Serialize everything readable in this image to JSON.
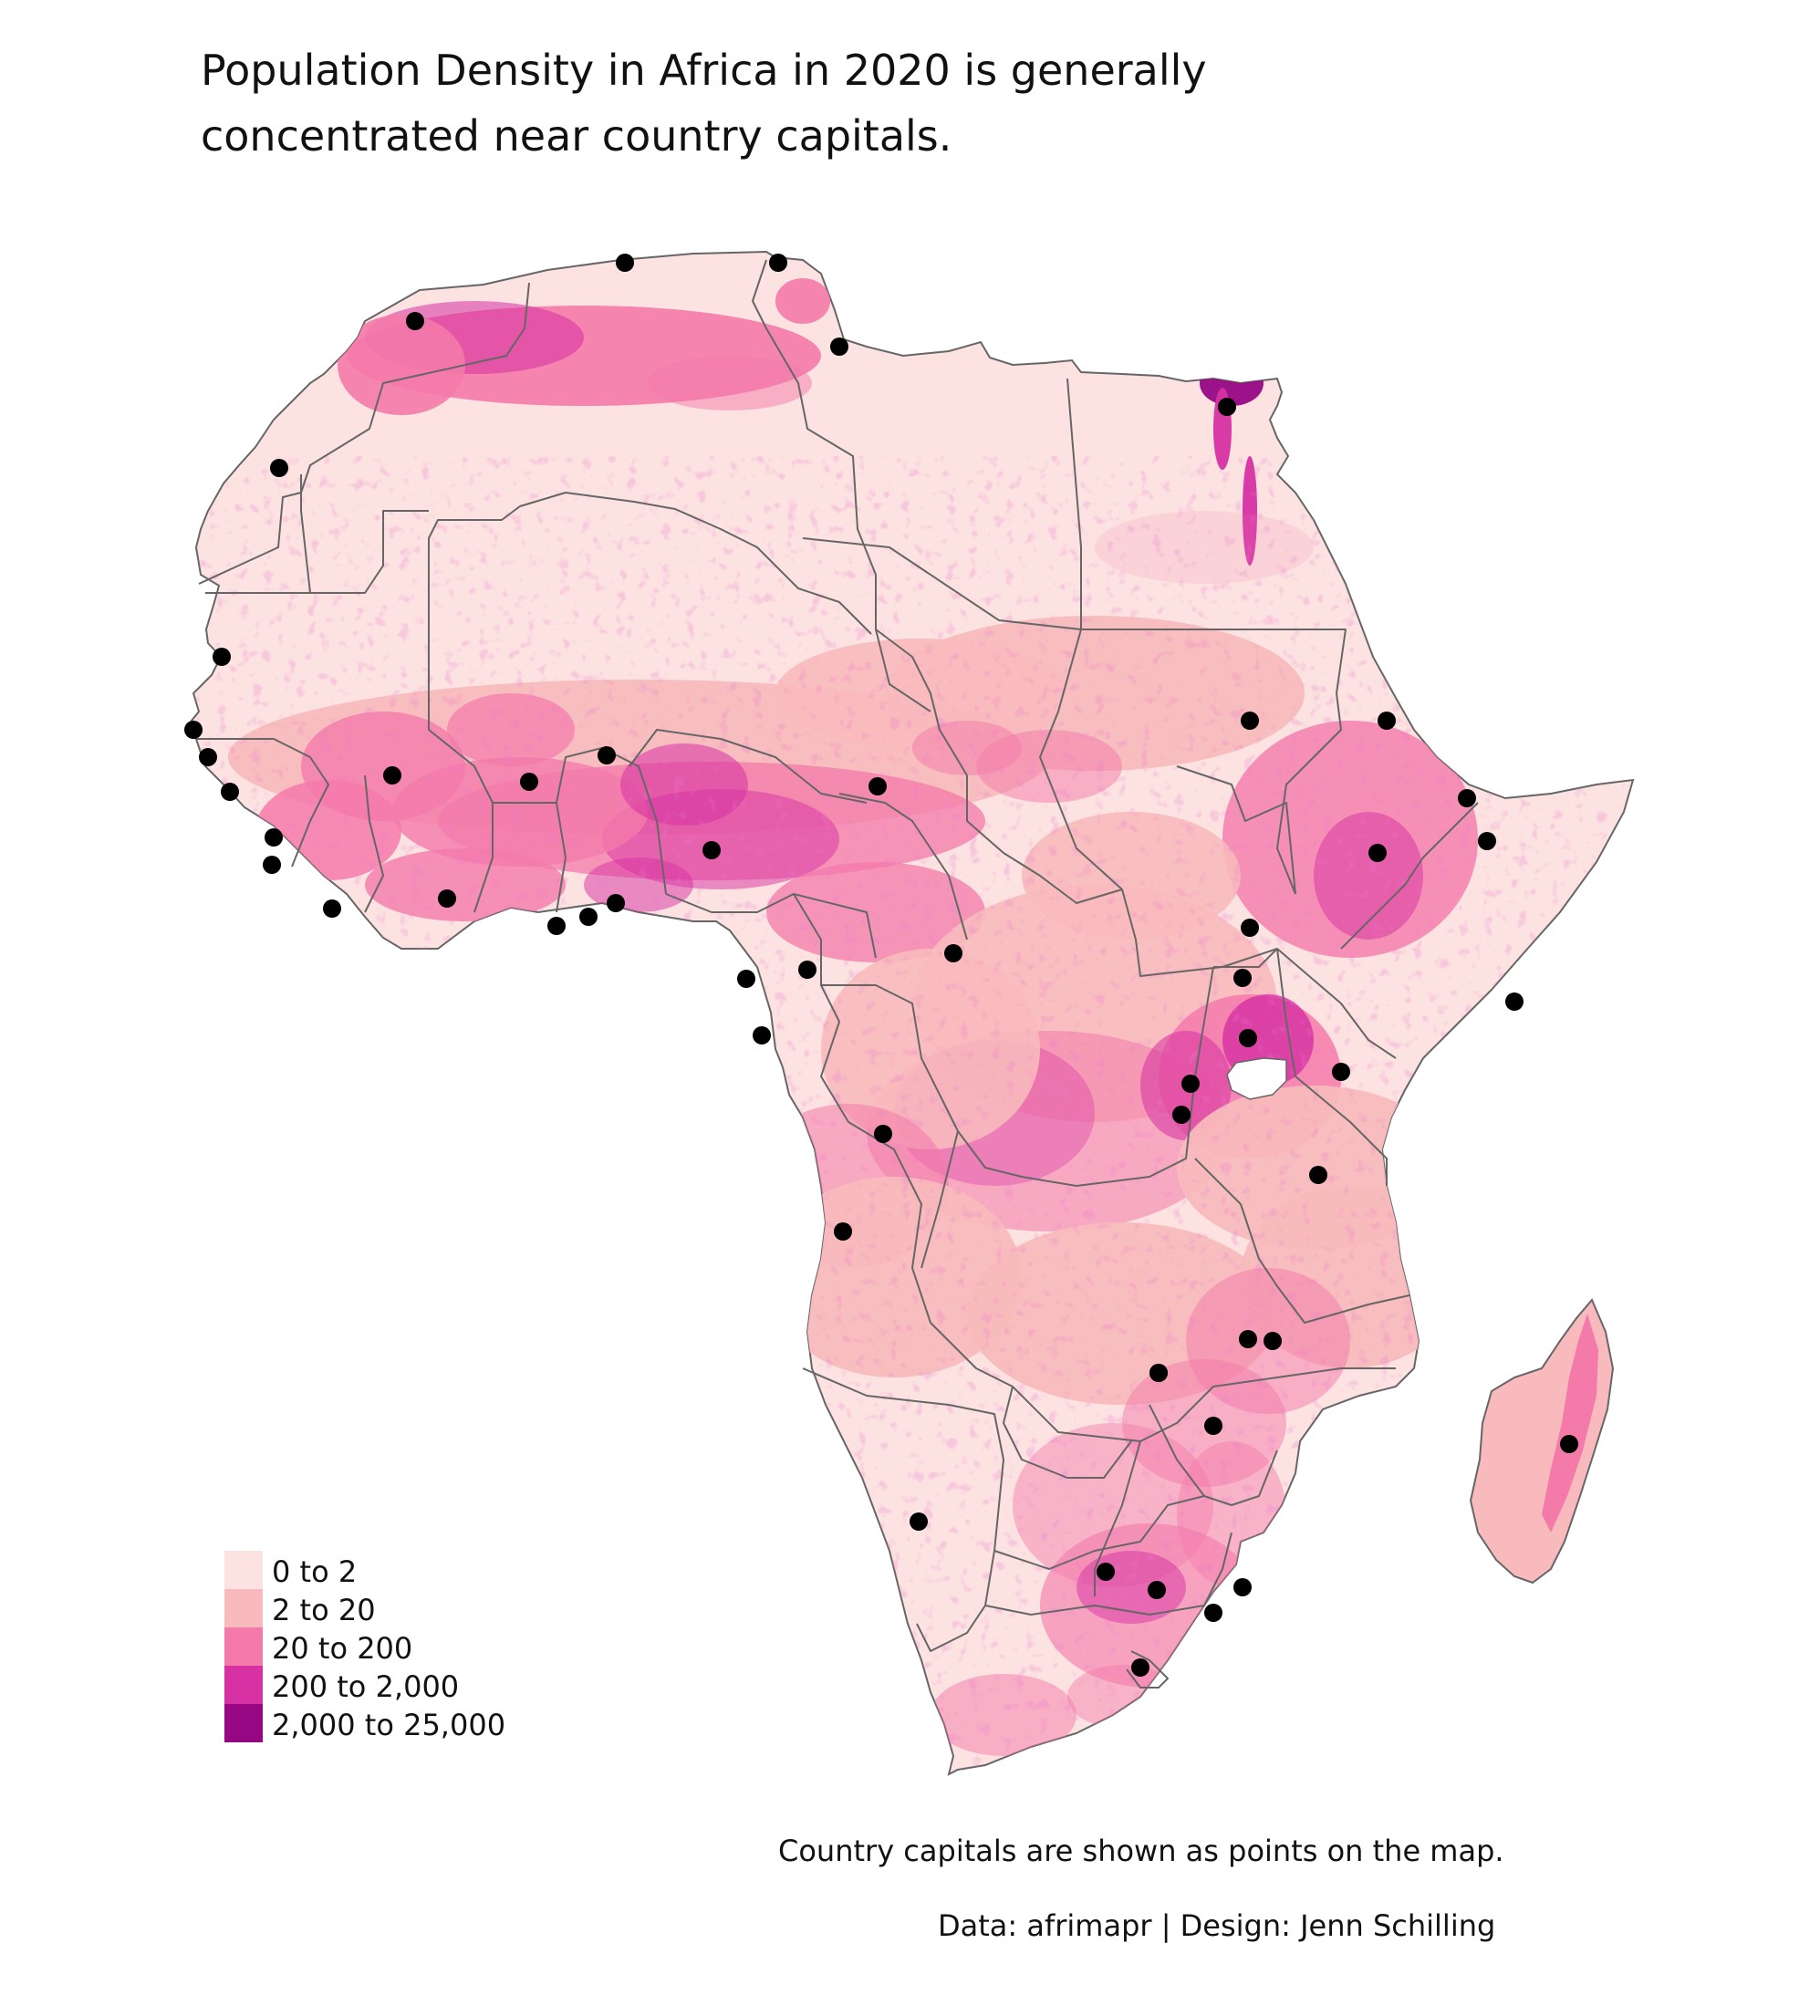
{
  "title": [
    "Population Density in Africa in 2020 is generally",
    "concentrated near country capitals."
  ],
  "caption": {
    "note": "Country capitals are shown as points on the map.",
    "credit": "Data: afrimapr | Design: Jenn Schilling"
  },
  "legend": {
    "items": [
      {
        "label": "0 to 2",
        "color": "#fce2e1"
      },
      {
        "label": "2 to 20",
        "color": "#f8babc"
      },
      {
        "label": "20 to 200",
        "color": "#f47aaa"
      },
      {
        "label": "200 to 2,000",
        "color": "#d630a2"
      },
      {
        "label": "2,000 to 25,000",
        "color": "#970784"
      }
    ]
  },
  "colors": {
    "border": "#666666",
    "capital": "#000000",
    "water": "#ffffff"
  },
  "capitals_count": 54
}
